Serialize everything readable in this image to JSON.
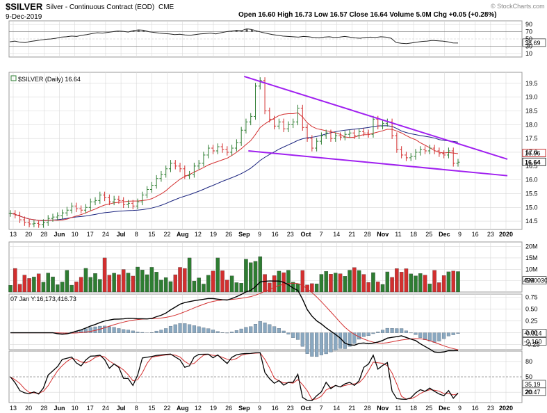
{
  "header": {
    "symbol": "$SILVER",
    "name": "Silver - Continuous Contract (EOD)",
    "exchange": "CME",
    "date": "9-Dec-2019",
    "ohlc": "Open 16.60  High 16.73  Low 16.57  Close 16.64  Volume 5.0M  Chg +0.05 (+0.28%)",
    "watermark": "© StockCharts.com"
  },
  "colors": {
    "up": "#2e7d32",
    "down": "#d32f2f",
    "ma_fast": "#d32f2f",
    "ma_slow": "#1a237e",
    "wedge": "#a020f0",
    "grid": "#d8d8d8",
    "rsi_fill": "#555555",
    "macd_hist": "#8aa8c0"
  },
  "chart_data": {
    "type": "stock-panels",
    "x_axis_labels": [
      "13",
      "20",
      "28",
      "Jun",
      "10",
      "17",
      "24",
      "Jul",
      "8",
      "15",
      "22",
      "Aug",
      "12",
      "19",
      "26",
      "Sep",
      "9",
      "16",
      "23",
      "Oct",
      "7",
      "14",
      "21",
      "28",
      "Nov",
      "11",
      "18",
      "25",
      "Dec",
      "9",
      "16",
      "23",
      "2020"
    ],
    "panels": {
      "rsi": {
        "ticks": [
          "90",
          "70",
          "50",
          "30",
          "10"
        ],
        "latest": "38.69",
        "ylim": [
          0,
          100
        ],
        "values": [
          42,
          44,
          41,
          40,
          43,
          45,
          47,
          49,
          50,
          52,
          55,
          56,
          58,
          57,
          60,
          62,
          65,
          67,
          66,
          68,
          70,
          72,
          71,
          69,
          73,
          75,
          74,
          70,
          68,
          66,
          65,
          64,
          62,
          63,
          61,
          60,
          62,
          64,
          65,
          66,
          64,
          67,
          70,
          72,
          74,
          73,
          78,
          76,
          72,
          68,
          65,
          62,
          60,
          58,
          57,
          56,
          55,
          57,
          56,
          54,
          53,
          55,
          56,
          54,
          55,
          57,
          55,
          53,
          52,
          54,
          55,
          54,
          56,
          55,
          52,
          40,
          38,
          37,
          39,
          41,
          43,
          44,
          46,
          45,
          44,
          42,
          39,
          38.69
        ]
      },
      "price": {
        "label": "$SILVER (Daily) 16.64",
        "ticks": [
          "19.5",
          "19.0",
          "18.5",
          "18.0",
          "17.5",
          "17.0",
          "16.5",
          "16.0",
          "15.5",
          "15.0",
          "14.5"
        ],
        "ylim": [
          14.2,
          19.9
        ],
        "latest": "16.64",
        "marker_ma": "16.96",
        "candles_close": [
          14.78,
          14.72,
          14.55,
          14.45,
          14.4,
          14.42,
          14.38,
          14.45,
          14.6,
          14.65,
          14.7,
          14.8,
          14.9,
          15.05,
          14.95,
          14.9,
          15.0,
          15.2,
          15.25,
          15.45,
          15.35,
          15.2,
          15.3,
          15.25,
          15.1,
          15.15,
          15.05,
          15.2,
          15.45,
          15.65,
          15.8,
          16.05,
          16.2,
          16.4,
          16.6,
          16.5,
          16.4,
          16.15,
          16.2,
          16.5,
          16.6,
          16.9,
          17.15,
          17.05,
          17.2,
          17.1,
          17.0,
          17.15,
          17.35,
          17.8,
          18.1,
          18.3,
          19.4,
          19.6,
          18.5,
          18.2,
          17.95,
          18.1,
          17.85,
          18.0,
          18.1,
          18.6,
          17.9,
          17.5,
          17.15,
          17.4,
          17.6,
          17.7,
          17.5,
          17.6,
          17.55,
          17.65,
          17.7,
          17.6,
          17.75,
          17.7,
          17.65,
          18.2,
          17.95,
          18.05,
          18.1,
          17.6,
          17.1,
          16.9,
          16.8,
          16.85,
          17.0,
          17.1,
          17.05,
          17.15,
          17.05,
          16.95,
          16.9,
          17.05,
          16.6,
          16.64
        ],
        "wedge_upper": {
          "from": [
            19.75,
            "Sep"
          ],
          "to": [
            16.75,
            "Dec 30"
          ]
        },
        "wedge_lower": {
          "from": [
            17.05,
            "Sep"
          ],
          "to": [
            16.15,
            "Dec 30"
          ]
        }
      },
      "volume": {
        "ticks": [
          "20M",
          "15M",
          "10M",
          "5M"
        ],
        "latest": "4990030",
        "ylim": [
          0,
          22
        ]
      },
      "macd": {
        "label": "07 Jan Y:16,173,416.73",
        "ticks": [
          "0.75",
          "0.50",
          "0.25",
          "0.00",
          "-0.25"
        ],
        "latest_signal": "-0.014",
        "latest_macd": "-0.160",
        "ylim": [
          -0.36,
          0.82
        ]
      },
      "stoch": {
        "ticks": [
          "80",
          "50",
          "20"
        ],
        "latest_k": "35.19",
        "latest_d": "20.47",
        "ylim": [
          0,
          100
        ]
      }
    }
  }
}
